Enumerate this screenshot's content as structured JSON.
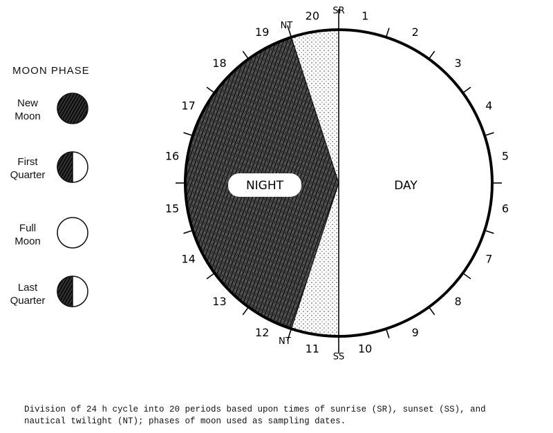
{
  "legend": {
    "title": "MOON PHASE",
    "items": [
      {
        "label_line1": "New",
        "label_line2": "Moon",
        "phase": "new"
      },
      {
        "label_line1": "First",
        "label_line2": "Quarter",
        "phase": "first-quarter"
      },
      {
        "label_line1": "Full",
        "label_line2": "Moon",
        "phase": "full"
      },
      {
        "label_line1": "Last",
        "label_line2": "Quarter",
        "phase": "last-quarter"
      }
    ]
  },
  "clock": {
    "periods": [
      "1",
      "2",
      "3",
      "4",
      "5",
      "6",
      "7",
      "8",
      "9",
      "10",
      "11",
      "12",
      "13",
      "14",
      "15",
      "16",
      "17",
      "18",
      "19",
      "20"
    ],
    "sunrise": "SR",
    "sunset": "SS",
    "twilight_top": "NT",
    "twilight_bottom": "NT",
    "night_label": "NIGHT",
    "day_label": "DAY"
  },
  "caption": {
    "line1": "Division of 24 h cycle into 20 periods based upon times of sunrise (SR), sunset (SS), and",
    "line2": "nautical twilight (NT); phases of moon used as sampling dates."
  }
}
